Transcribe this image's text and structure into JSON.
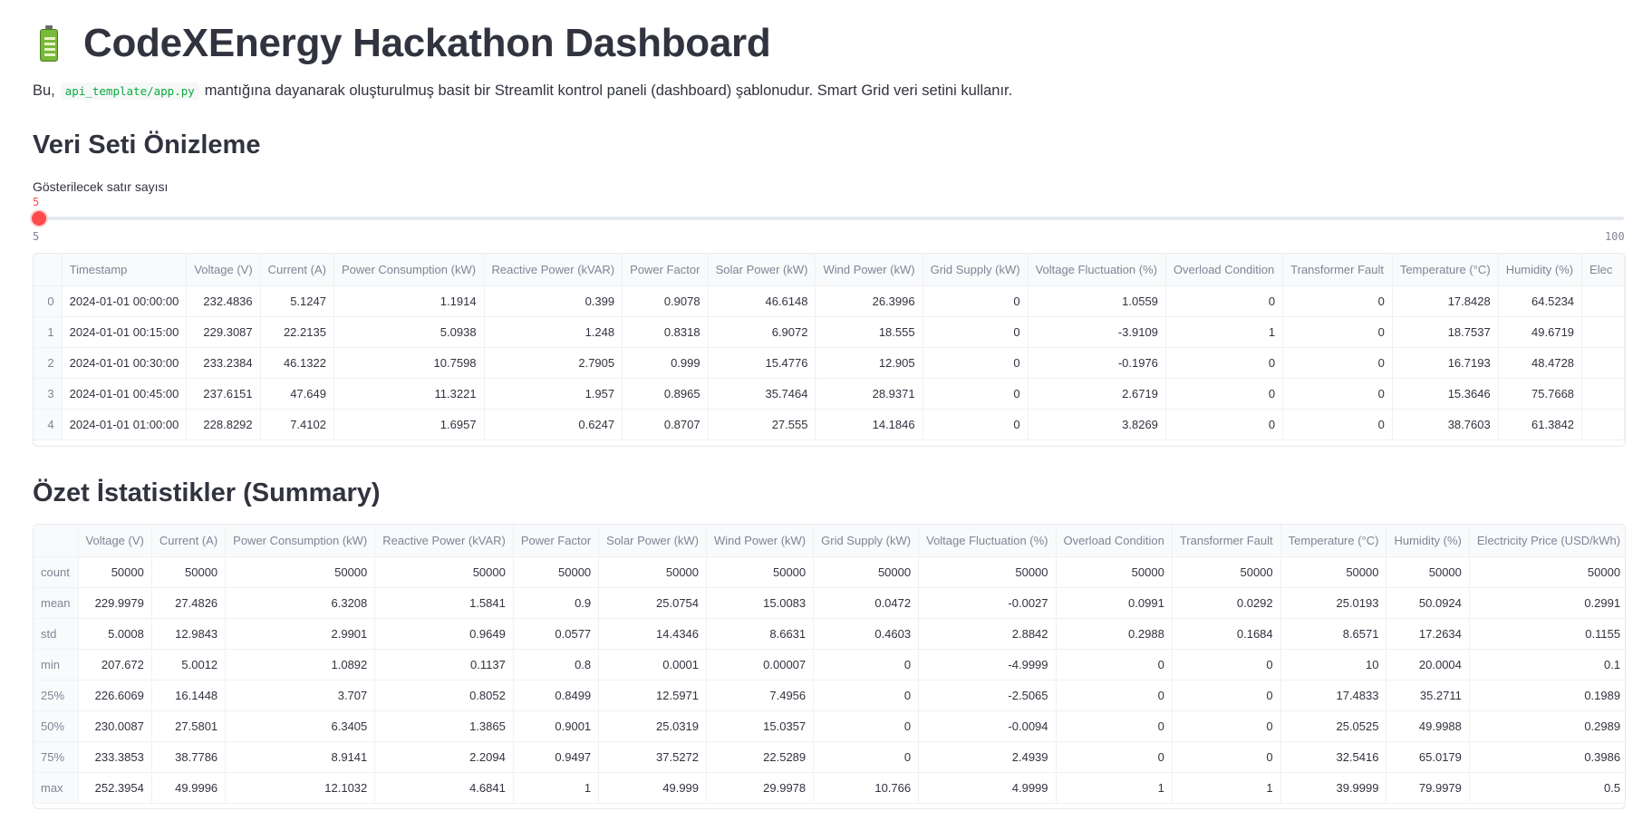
{
  "title": "CodeXEnergy Hackathon Dashboard",
  "intro": {
    "before": "Bu,",
    "code": "api_template/app.py",
    "after": "mantığına dayanarak oluşturulmuş basit bir Streamlit kontrol paneli (dashboard) şablonudur. Smart Grid veri setini kullanır."
  },
  "preview": {
    "heading": "Veri Seti Önizleme",
    "slider": {
      "label": "Gösterilecek satır sayısı",
      "value": "5",
      "min": "5",
      "max": "100"
    },
    "columns": [
      "",
      "Timestamp",
      "Voltage (V)",
      "Current (A)",
      "Power Consumption (kW)",
      "Reactive Power (kVAR)",
      "Power Factor",
      "Solar Power (kW)",
      "Wind Power (kW)",
      "Grid Supply (kW)",
      "Voltage Fluctuation (%)",
      "Overload Condition",
      "Transformer Fault",
      "Temperature (°C)",
      "Humidity (%)",
      "Elec"
    ],
    "rows": [
      [
        "0",
        "2024-01-01 00:00:00",
        "232.4836",
        "5.1247",
        "1.1914",
        "0.399",
        "0.9078",
        "46.6148",
        "26.3996",
        "0",
        "1.0559",
        "0",
        "0",
        "17.8428",
        "64.5234",
        ""
      ],
      [
        "1",
        "2024-01-01 00:15:00",
        "229.3087",
        "22.2135",
        "5.0938",
        "1.248",
        "0.8318",
        "6.9072",
        "18.555",
        "0",
        "-3.9109",
        "1",
        "0",
        "18.7537",
        "49.6719",
        ""
      ],
      [
        "2",
        "2024-01-01 00:30:00",
        "233.2384",
        "46.1322",
        "10.7598",
        "2.7905",
        "0.999",
        "15.4776",
        "12.905",
        "0",
        "-0.1976",
        "0",
        "0",
        "16.7193",
        "48.4728",
        ""
      ],
      [
        "3",
        "2024-01-01 00:45:00",
        "237.6151",
        "47.649",
        "11.3221",
        "1.957",
        "0.8965",
        "35.7464",
        "28.9371",
        "0",
        "2.6719",
        "0",
        "0",
        "15.3646",
        "75.7668",
        ""
      ],
      [
        "4",
        "2024-01-01 01:00:00",
        "228.8292",
        "7.4102",
        "1.6957",
        "0.6247",
        "0.8707",
        "27.555",
        "14.1846",
        "0",
        "3.8269",
        "0",
        "0",
        "38.7603",
        "61.3842",
        ""
      ]
    ]
  },
  "summary": {
    "heading": "Özet İstatistikler (Summary)",
    "columns": [
      "",
      "Voltage (V)",
      "Current (A)",
      "Power Consumption (kW)",
      "Reactive Power (kVAR)",
      "Power Factor",
      "Solar Power (kW)",
      "Wind Power (kW)",
      "Grid Supply (kW)",
      "Voltage Fluctuation (%)",
      "Overload Condition",
      "Transformer Fault",
      "Temperature (°C)",
      "Humidity (%)",
      "Electricity Price (USD/kWh)"
    ],
    "rows": [
      [
        "count",
        "50000",
        "50000",
        "50000",
        "50000",
        "50000",
        "50000",
        "50000",
        "50000",
        "50000",
        "50000",
        "50000",
        "50000",
        "50000",
        "50000"
      ],
      [
        "mean",
        "229.9979",
        "27.4826",
        "6.3208",
        "1.5841",
        "0.9",
        "25.0754",
        "15.0083",
        "0.0472",
        "-0.0027",
        "0.0991",
        "0.0292",
        "25.0193",
        "50.0924",
        "0.2991"
      ],
      [
        "std",
        "5.0008",
        "12.9843",
        "2.9901",
        "0.9649",
        "0.0577",
        "14.4346",
        "8.6631",
        "0.4603",
        "2.8842",
        "0.2988",
        "0.1684",
        "8.6571",
        "17.2634",
        "0.1155"
      ],
      [
        "min",
        "207.672",
        "5.0012",
        "1.0892",
        "0.1137",
        "0.8",
        "0.0001",
        "0.00007",
        "0",
        "-4.9999",
        "0",
        "0",
        "10",
        "20.0004",
        "0.1"
      ],
      [
        "25%",
        "226.6069",
        "16.1448",
        "3.707",
        "0.8052",
        "0.8499",
        "12.5971",
        "7.4956",
        "0",
        "-2.5065",
        "0",
        "0",
        "17.4833",
        "35.2711",
        "0.1989"
      ],
      [
        "50%",
        "230.0087",
        "27.5801",
        "6.3405",
        "1.3865",
        "0.9001",
        "25.0319",
        "15.0357",
        "0",
        "-0.0094",
        "0",
        "0",
        "25.0525",
        "49.9988",
        "0.2989"
      ],
      [
        "75%",
        "233.3853",
        "38.7786",
        "8.9141",
        "2.2094",
        "0.9497",
        "37.5272",
        "22.5289",
        "0",
        "2.4939",
        "0",
        "0",
        "32.5416",
        "65.0179",
        "0.3986"
      ],
      [
        "max",
        "252.3954",
        "49.9996",
        "12.1032",
        "4.6841",
        "1",
        "49.999",
        "29.9978",
        "10.766",
        "4.9999",
        "1",
        "1",
        "39.9999",
        "79.9979",
        "0.5"
      ]
    ]
  }
}
